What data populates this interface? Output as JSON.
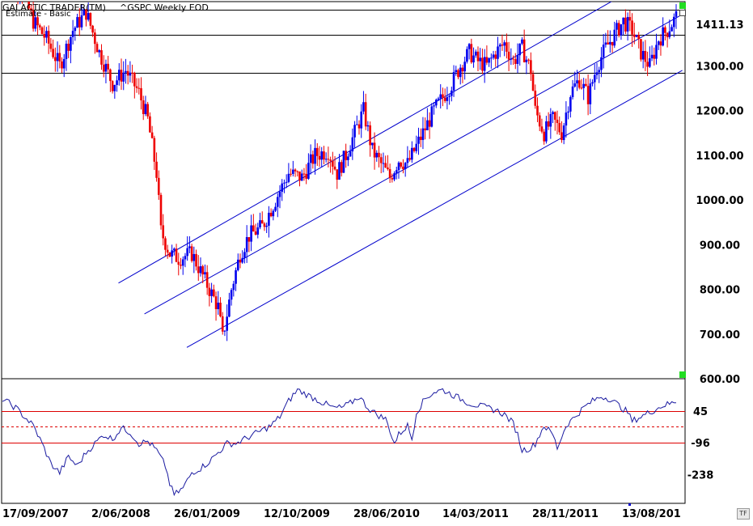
{
  "header": {
    "app_title": "GALACTIC TRADER(TM)",
    "symbol_title": "^GSPC Weekly EOD",
    "subtitle": "Estimate - Basic"
  },
  "buttons": {
    "timeframe": "TF"
  },
  "colors": {
    "up": "#0000ee",
    "down": "#ee0000",
    "channel": "#0000cc",
    "horizontal": "#000000",
    "rsi_line": "#1a1aa0",
    "rsi_levels": "#dd0000",
    "marker": "#22dd22"
  },
  "chart_data": [
    {
      "type": "candlestick",
      "title": "^GSPC Weekly EOD",
      "ylim": [
        600,
        1460
      ],
      "yticks": [
        "1411.13",
        "1300.00",
        "1200.00",
        "1100.00",
        "1000.00",
        "900.00",
        "800.00",
        "700.00",
        "600.00"
      ],
      "last_price_label": "1411.13",
      "x_date_labels": [
        "17/09/2007",
        "2/06/2008",
        "26/01/2009",
        "12/10/2009",
        "28/06/2010",
        "14/03/2011",
        "28/11/2011",
        "13/08/201"
      ],
      "price_path": [
        [
          0,
          1500
        ],
        [
          8,
          1480
        ],
        [
          14,
          1400
        ],
        [
          20,
          1360
        ],
        [
          26,
          1300
        ],
        [
          32,
          1380
        ],
        [
          38,
          1420
        ],
        [
          44,
          1330
        ],
        [
          50,
          1260
        ],
        [
          56,
          1290
        ],
        [
          62,
          1240
        ],
        [
          66,
          1180
        ],
        [
          70,
          1060
        ],
        [
          72,
          930
        ],
        [
          76,
          880
        ],
        [
          80,
          870
        ],
        [
          86,
          880
        ],
        [
          90,
          840
        ],
        [
          94,
          800
        ],
        [
          98,
          760
        ],
        [
          100,
          690
        ],
        [
          104,
          800
        ],
        [
          108,
          880
        ],
        [
          112,
          920
        ],
        [
          118,
          940
        ],
        [
          124,
          1000
        ],
        [
          130,
          1060
        ],
        [
          136,
          1050
        ],
        [
          142,
          1100
        ],
        [
          148,
          1110
        ],
        [
          152,
          1060
        ],
        [
          156,
          1100
        ],
        [
          160,
          1150
        ],
        [
          164,
          1200
        ],
        [
          168,
          1110
        ],
        [
          172,
          1080
        ],
        [
          176,
          1050
        ],
        [
          180,
          1090
        ],
        [
          184,
          1080
        ],
        [
          188,
          1120
        ],
        [
          192,
          1160
        ],
        [
          196,
          1200
        ],
        [
          200,
          1230
        ],
        [
          204,
          1260
        ],
        [
          208,
          1300
        ],
        [
          212,
          1330
        ],
        [
          216,
          1310
        ],
        [
          220,
          1300
        ],
        [
          224,
          1330
        ],
        [
          228,
          1350
        ],
        [
          232,
          1310
        ],
        [
          236,
          1340
        ],
        [
          240,
          1290
        ],
        [
          242,
          1200
        ],
        [
          246,
          1150
        ],
        [
          250,
          1180
        ],
        [
          254,
          1150
        ],
        [
          258,
          1240
        ],
        [
          262,
          1270
        ],
        [
          266,
          1230
        ],
        [
          270,
          1300
        ],
        [
          274,
          1340
        ],
        [
          278,
          1370
        ],
        [
          282,
          1400
        ],
        [
          286,
          1380
        ],
        [
          290,
          1330
        ],
        [
          294,
          1300
        ],
        [
          298,
          1360
        ],
        [
          302,
          1380
        ],
        [
          306,
          1410
        ]
      ],
      "horizontal_levels": [
        1425,
        1370,
        1285
      ],
      "channel_lines": [
        {
          "name": "channel-upper",
          "start": [
            0.171,
            814
          ],
          "end": [
            0.905,
            1455
          ]
        },
        {
          "name": "channel-middle",
          "start": [
            0.209,
            745
          ],
          "end": [
            0.996,
            1415
          ]
        },
        {
          "name": "channel-lower",
          "start": [
            0.271,
            670
          ],
          "end": [
            0.996,
            1290
          ]
        }
      ]
    },
    {
      "type": "line",
      "title": "",
      "ylim": [
        -330,
        170
      ],
      "yticks": [
        "45",
        "-96",
        "-238"
      ],
      "level_lines": [
        {
          "value": 45,
          "style": "solid"
        },
        {
          "value": -25,
          "style": "dashed"
        },
        {
          "value": -96,
          "style": "solid"
        }
      ],
      "rsi_path": [
        [
          0,
          100
        ],
        [
          3,
          80
        ],
        [
          6,
          60
        ],
        [
          10,
          20
        ],
        [
          14,
          -20
        ],
        [
          18,
          -100
        ],
        [
          22,
          -190
        ],
        [
          26,
          -230
        ],
        [
          30,
          -160
        ],
        [
          34,
          -200
        ],
        [
          38,
          -140
        ],
        [
          42,
          -100
        ],
        [
          46,
          -60
        ],
        [
          50,
          -80
        ],
        [
          54,
          -30
        ],
        [
          58,
          -50
        ],
        [
          62,
          -100
        ],
        [
          66,
          -90
        ],
        [
          70,
          -130
        ],
        [
          74,
          -200
        ],
        [
          76,
          -280
        ],
        [
          78,
          -330
        ],
        [
          82,
          -300
        ],
        [
          86,
          -230
        ],
        [
          90,
          -210
        ],
        [
          94,
          -180
        ],
        [
          98,
          -140
        ],
        [
          102,
          -100
        ],
        [
          106,
          -100
        ],
        [
          110,
          -80
        ],
        [
          114,
          -60
        ],
        [
          118,
          -40
        ],
        [
          122,
          -20
        ],
        [
          126,
          20
        ],
        [
          130,
          90
        ],
        [
          134,
          140
        ],
        [
          138,
          120
        ],
        [
          142,
          100
        ],
        [
          146,
          80
        ],
        [
          150,
          60
        ],
        [
          154,
          60
        ],
        [
          158,
          80
        ],
        [
          162,
          110
        ],
        [
          166,
          60
        ],
        [
          170,
          30
        ],
        [
          174,
          10
        ],
        [
          176,
          -40
        ],
        [
          178,
          -100
        ],
        [
          180,
          -60
        ],
        [
          184,
          -20
        ],
        [
          186,
          -80
        ],
        [
          188,
          40
        ],
        [
          192,
          100
        ],
        [
          196,
          130
        ],
        [
          200,
          140
        ],
        [
          204,
          120
        ],
        [
          208,
          100
        ],
        [
          212,
          80
        ],
        [
          216,
          70
        ],
        [
          220,
          60
        ],
        [
          224,
          50
        ],
        [
          228,
          30
        ],
        [
          232,
          -10
        ],
        [
          234,
          -60
        ],
        [
          236,
          -130
        ],
        [
          240,
          -120
        ],
        [
          242,
          -100
        ],
        [
          246,
          -20
        ],
        [
          250,
          -60
        ],
        [
          252,
          -120
        ],
        [
          256,
          -20
        ],
        [
          260,
          20
        ],
        [
          264,
          60
        ],
        [
          268,
          90
        ],
        [
          272,
          110
        ],
        [
          276,
          100
        ],
        [
          280,
          70
        ],
        [
          284,
          40
        ],
        [
          286,
          0
        ],
        [
          288,
          10
        ],
        [
          292,
          30
        ],
        [
          296,
          50
        ],
        [
          300,
          70
        ],
        [
          304,
          80
        ],
        [
          306,
          90
        ]
      ]
    }
  ]
}
